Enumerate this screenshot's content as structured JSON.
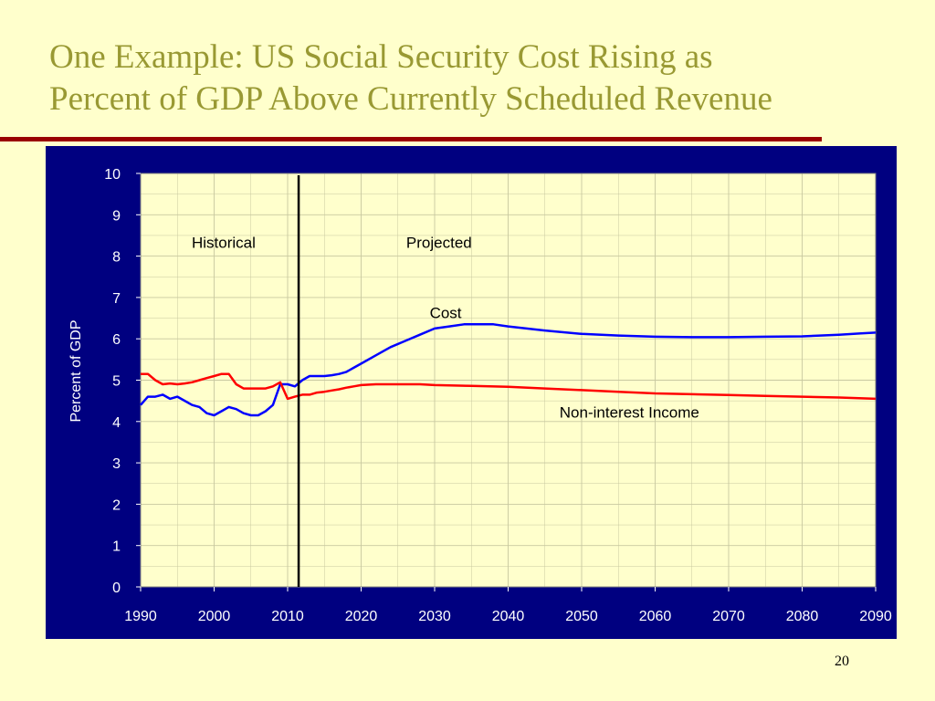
{
  "slide": {
    "title_line1": "One Example: US Social Security Cost Rising as",
    "title_line2": "Percent of GDP Above Currently Scheduled Revenue",
    "page_number": "20"
  },
  "colors": {
    "background": "#ffffcc",
    "title": "#999933",
    "rule": "#990000",
    "panel": "#000080",
    "plot_bg": "#ffffcc",
    "cost": "#0000ff",
    "income": "#ff0000",
    "divider": "#000000"
  },
  "chart_data": {
    "type": "line",
    "title": "",
    "xlabel": "",
    "ylabel": "Percent of GDP",
    "xlim": [
      1990,
      2090
    ],
    "ylim": [
      0,
      10
    ],
    "xticks": [
      1990,
      2000,
      2010,
      2020,
      2030,
      2040,
      2050,
      2060,
      2070,
      2080,
      2090
    ],
    "yticks": [
      0,
      1,
      2,
      3,
      4,
      5,
      6,
      7,
      8,
      9,
      10
    ],
    "grid": true,
    "legend": "none",
    "divider_year": 2011.5,
    "annotations": [
      {
        "text": "Historical",
        "x": 2001.3,
        "y": 8.2
      },
      {
        "text": "Projected",
        "x": 2030.6,
        "y": 8.2
      },
      {
        "text": "Cost",
        "x": 2031.5,
        "y": 6.5
      },
      {
        "text": "Non-interest Income",
        "x": 2056.5,
        "y": 4.1
      }
    ],
    "series": [
      {
        "name": "Cost",
        "x": [
          1990,
          1991,
          1992,
          1993,
          1994,
          1995,
          1996,
          1997,
          1998,
          1999,
          2000,
          2001,
          2002,
          2003,
          2004,
          2005,
          2006,
          2007,
          2008,
          2009,
          2010,
          2011,
          2012,
          2013,
          2014,
          2015,
          2016,
          2017,
          2018,
          2019,
          2020,
          2022,
          2024,
          2026,
          2028,
          2030,
          2032,
          2034,
          2036,
          2038,
          2040,
          2045,
          2050,
          2055,
          2060,
          2065,
          2070,
          2075,
          2080,
          2085,
          2088,
          2090
        ],
        "values": [
          4.4,
          4.6,
          4.6,
          4.65,
          4.55,
          4.6,
          4.5,
          4.4,
          4.35,
          4.2,
          4.15,
          4.25,
          4.35,
          4.3,
          4.2,
          4.15,
          4.15,
          4.25,
          4.4,
          4.9,
          4.9,
          4.85,
          5.0,
          5.1,
          5.1,
          5.1,
          5.12,
          5.15,
          5.2,
          5.3,
          5.4,
          5.6,
          5.8,
          5.95,
          6.1,
          6.25,
          6.3,
          6.35,
          6.35,
          6.35,
          6.3,
          6.2,
          6.12,
          6.08,
          6.05,
          6.04,
          6.04,
          6.05,
          6.06,
          6.1,
          6.13,
          6.15
        ]
      },
      {
        "name": "Non-interest Income",
        "x": [
          1990,
          1991,
          1992,
          1993,
          1994,
          1995,
          1996,
          1997,
          1998,
          1999,
          2000,
          2001,
          2002,
          2003,
          2004,
          2005,
          2006,
          2007,
          2008,
          2009,
          2010,
          2011,
          2012,
          2013,
          2014,
          2015,
          2016,
          2017,
          2018,
          2019,
          2020,
          2022,
          2024,
          2026,
          2028,
          2030,
          2035,
          2040,
          2045,
          2050,
          2055,
          2060,
          2065,
          2070,
          2075,
          2080,
          2085,
          2090
        ],
        "values": [
          5.15,
          5.15,
          5.0,
          4.9,
          4.92,
          4.9,
          4.92,
          4.95,
          5.0,
          5.05,
          5.1,
          5.15,
          5.15,
          4.9,
          4.8,
          4.8,
          4.8,
          4.8,
          4.85,
          4.95,
          4.55,
          4.6,
          4.65,
          4.65,
          4.7,
          4.72,
          4.75,
          4.78,
          4.82,
          4.85,
          4.88,
          4.9,
          4.9,
          4.9,
          4.9,
          4.88,
          4.86,
          4.84,
          4.8,
          4.76,
          4.72,
          4.68,
          4.66,
          4.64,
          4.62,
          4.6,
          4.58,
          4.55
        ]
      }
    ]
  }
}
